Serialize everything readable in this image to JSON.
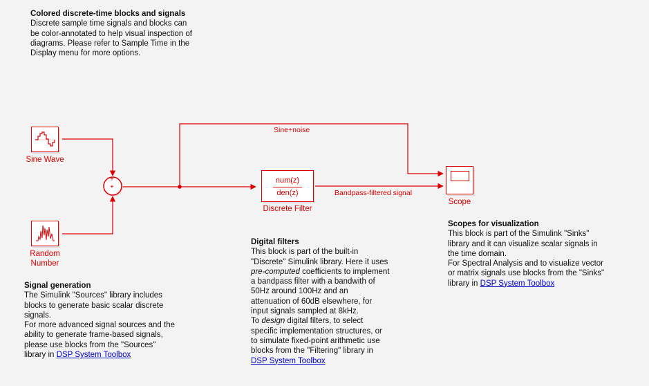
{
  "notes": {
    "header": {
      "title": "Colored discrete-time blocks and signals",
      "lines": [
        "Discrete sample time signals and blocks  can",
        "be color-annotated to help visual inspection of",
        "diagrams. Please refer to Sample Time in the",
        "Display menu for more options."
      ]
    },
    "signal_generation": {
      "title": "Signal generation",
      "lines": [
        "The Simulink \"Sources\" library includes",
        "blocks to generate basic scalar discrete",
        "signals.",
        "For more advanced signal sources and the",
        "ability to generate frame-based signals,",
        "please use blocks from the \"Sources\""
      ],
      "last_prefix": "library in ",
      "link": "DSP System Toolbox"
    },
    "digital_filters": {
      "title": "Digital filters",
      "l1": "This block is part of the built-in",
      "l2": "\"Discrete\" Simulink library. Here it uses",
      "l3_em": "pre-computed",
      "l3_rest": " coefficients to implement",
      "l4": "a bandpass filter with a bandwith of",
      "l5": "50Hz around 100Hz and an",
      "l6": "attenuation of 60dB elsewhere, for",
      "l7": "input signals sampled at 8kHz.",
      "l8_pre": "To ",
      "l8_em": "design",
      "l8_rest": " digital filters, to select",
      "l9": "specific implementation structures, or",
      "l10": "to simulate fixed-point arithmetic use",
      "l11": "blocks from the \"Filtering\" library in",
      "link": "DSP System Toolbox"
    },
    "scopes": {
      "title": "Scopes for visualization",
      "lines": [
        "This block is part of the Simulink \"Sinks\"",
        "library and it can visualize scalar signals in",
        "the time domain.",
        "For Spectral Analysis and to visualize vector",
        "or matrix signals use blocks from the \"Sinks\""
      ],
      "last_prefix": "library in ",
      "link": "DSP System Toolbox"
    }
  },
  "blocks": {
    "sine_wave": "Sine Wave",
    "random_number": [
      "Random",
      "Number"
    ],
    "sum_signs": [
      "+",
      "+"
    ],
    "filter_num": "num(z)",
    "filter_den": "den(z)",
    "discrete_filter": "Discrete Filter",
    "scope": "Scope"
  },
  "signals": {
    "sine_noise": "Sine+noise",
    "bandpass": "Bandpass-filtered signal"
  },
  "colors": {
    "discrete": "#dd0000",
    "link": "#0000cc",
    "background": "#f3f3f3"
  }
}
